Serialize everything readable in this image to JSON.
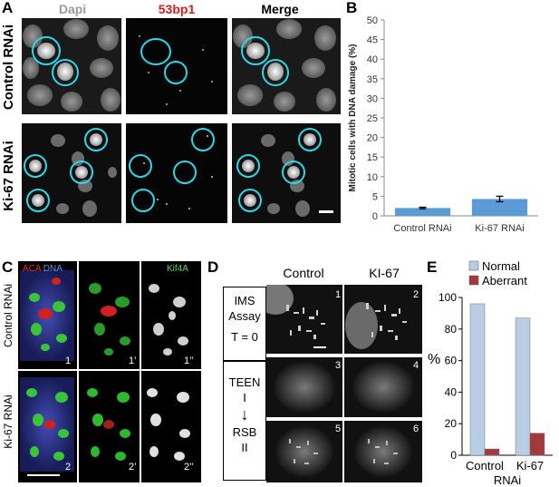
{
  "panels": {
    "a": "A",
    "b": "B",
    "c": "C",
    "d": "D",
    "e": "E"
  },
  "panel_a": {
    "columns": [
      {
        "label": "Dapi",
        "color": "#9a9a9a"
      },
      {
        "label": "53bp1",
        "color": "#d42020"
      },
      {
        "label": "Merge",
        "color": "#000000"
      }
    ],
    "rows": [
      "Control RNAi",
      "Ki-67 RNAi"
    ]
  },
  "panel_c": {
    "labels": {
      "aca": "ACA",
      "dna": "DNA",
      "kif4a": "Kif4A"
    },
    "rows": [
      "Control RNAi",
      "Ki-67 RNAi"
    ],
    "numbers": [
      [
        "1",
        "1’",
        "1’’"
      ],
      [
        "2",
        "2’",
        "2’’"
      ]
    ]
  },
  "panel_d": {
    "columns": [
      "Control",
      "KI-67"
    ],
    "box1": [
      "IMS",
      "Assay",
      "T = 0"
    ],
    "box2_top": [
      "TEEN",
      "I"
    ],
    "arrow": "↓",
    "box2_bottom": [
      "RSB",
      "II"
    ],
    "numbers": [
      "1",
      "2",
      "3",
      "4",
      "5",
      "6"
    ]
  },
  "chart_data": [
    {
      "type": "bar",
      "categories": [
        "Control RNAi",
        "Ki-67 RNAi"
      ],
      "values": [
        2.0,
        4.3
      ],
      "errors": [
        0.2,
        0.7
      ],
      "ylabel": "Mitotic cells with DNA damage (%)",
      "ylim": [
        0,
        50
      ],
      "yticks": [
        0,
        5,
        10,
        15,
        20,
        25,
        30,
        35,
        40,
        45,
        50
      ],
      "grid": false,
      "bar_color": "#5b9bd5"
    },
    {
      "type": "bar",
      "categories": [
        "Control",
        "Ki-67"
      ],
      "group_label": "RNAi",
      "series": [
        {
          "name": "Normal",
          "values": [
            96,
            87
          ],
          "color": "#b9cde5"
        },
        {
          "name": "Aberrant",
          "values": [
            4,
            14
          ],
          "color": "#a33a3a"
        }
      ],
      "ylabel": "%",
      "ylim": [
        0,
        100
      ],
      "yticks": [
        0,
        20,
        40,
        60,
        80,
        100
      ],
      "legend": "top",
      "grid": false
    }
  ]
}
